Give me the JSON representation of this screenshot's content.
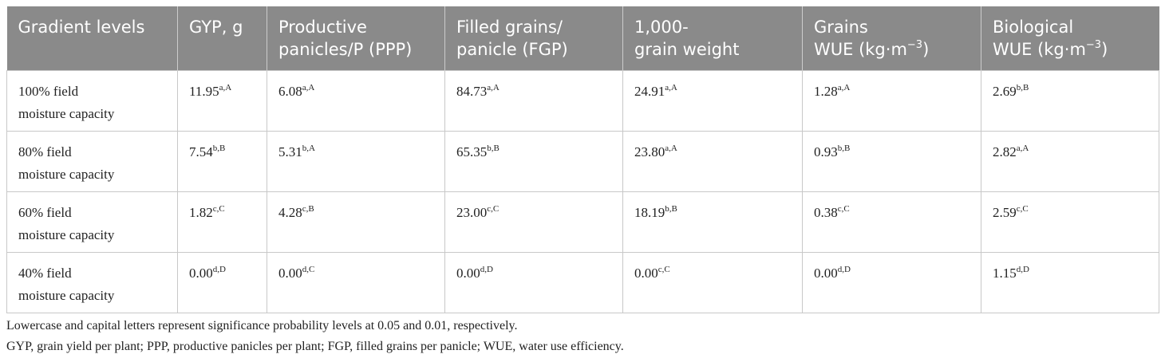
{
  "table": {
    "header": [
      [
        "Gradient levels"
      ],
      [
        "GYP, g"
      ],
      [
        "Productive",
        "panicles/P (PPP)"
      ],
      [
        "Filled grains/",
        "panicle (FGP)"
      ],
      [
        "1,000-",
        "grain weight"
      ],
      [
        "Grains",
        {
          "text": "WUE (kg·m",
          "sup": "−3",
          "tail": ")"
        }
      ],
      [
        "Biological",
        {
          "text": "WUE (kg·m",
          "sup": "−3",
          "tail": ")"
        }
      ]
    ],
    "rows": [
      [
        [
          "100% field",
          "moisture capacity"
        ],
        {
          "value": "11.95",
          "sup": "a,A"
        },
        {
          "value": "6.08",
          "sup": "a,A"
        },
        {
          "value": "84.73",
          "sup": "a,A"
        },
        {
          "value": "24.91",
          "sup": "a,A"
        },
        {
          "value": "1.28",
          "sup": "a,A"
        },
        {
          "value": "2.69",
          "sup": "b,B"
        }
      ],
      [
        [
          "80% field",
          "moisture capacity"
        ],
        {
          "value": "7.54",
          "sup": "b,B"
        },
        {
          "value": "5.31",
          "sup": "b,A"
        },
        {
          "value": "65.35",
          "sup": "b,B"
        },
        {
          "value": "23.80",
          "sup": "a,A"
        },
        {
          "value": "0.93",
          "sup": "b,B"
        },
        {
          "value": "2.82",
          "sup": "a,A"
        }
      ],
      [
        [
          "60% field",
          "moisture capacity"
        ],
        {
          "value": "1.82",
          "sup": "c,C"
        },
        {
          "value": "4.28",
          "sup": "c,B"
        },
        {
          "value": "23.00",
          "sup": "c,C"
        },
        {
          "value": "18.19",
          "sup": "b,B"
        },
        {
          "value": "0.38",
          "sup": "c,C"
        },
        {
          "value": "2.59",
          "sup": "c,C"
        }
      ],
      [
        [
          "40% field",
          "moisture capacity"
        ],
        {
          "value": "0.00",
          "sup": "d,D"
        },
        {
          "value": "0.00",
          "sup": "d,C"
        },
        {
          "value": "0.00",
          "sup": "d,D"
        },
        {
          "value": "0.00",
          "sup": "c,C"
        },
        {
          "value": "0.00",
          "sup": "d,D"
        },
        {
          "value": "1.15",
          "sup": "d,D"
        }
      ]
    ]
  },
  "footnotes": [
    "Lowercase and capital letters represent significance probability levels at 0.05 and 0.01, respectively.",
    "GYP, grain yield per plant; PPP, productive panicles per plant; FGP, filled grains per panicle; WUE, water use efficiency."
  ]
}
